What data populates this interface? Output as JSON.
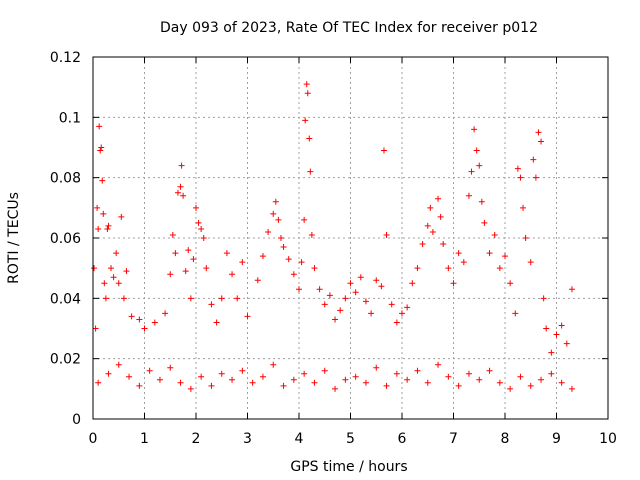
{
  "chart_data": {
    "type": "scatter",
    "title": "Day 093 of 2023, Rate Of TEC Index for receiver p012",
    "xlabel": "GPS time / hours",
    "ylabel": "ROTI / TECUs",
    "xlim": [
      0,
      10
    ],
    "ylim": [
      0,
      0.12
    ],
    "x_ticks": [
      "0",
      "1",
      "2",
      "3",
      "4",
      "5",
      "6",
      "7",
      "8",
      "9",
      "10"
    ],
    "y_ticks": [
      "0",
      "0.02",
      "0.04",
      "0.06",
      "0.08",
      "0.1",
      "0.12"
    ],
    "grid": true,
    "marker": "+",
    "color": "#ff0000",
    "series": [
      {
        "points": [
          [
            0.02,
            0.05
          ],
          [
            0.05,
            0.03
          ],
          [
            0.08,
            0.07
          ],
          [
            0.1,
            0.063
          ],
          [
            0.12,
            0.097
          ],
          [
            0.14,
            0.089
          ],
          [
            0.16,
            0.09
          ],
          [
            0.18,
            0.079
          ],
          [
            0.2,
            0.068
          ],
          [
            0.22,
            0.045
          ],
          [
            0.25,
            0.04
          ],
          [
            0.28,
            0.063
          ],
          [
            0.3,
            0.064
          ],
          [
            0.35,
            0.05
          ],
          [
            0.4,
            0.047
          ],
          [
            0.45,
            0.055
          ],
          [
            0.5,
            0.045
          ],
          [
            0.55,
            0.067
          ],
          [
            0.6,
            0.04
          ],
          [
            0.65,
            0.049
          ],
          [
            0.75,
            0.034
          ],
          [
            0.9,
            0.033
          ],
          [
            1.0,
            0.03
          ],
          [
            1.2,
            0.032
          ],
          [
            1.4,
            0.035
          ],
          [
            1.5,
            0.048
          ],
          [
            1.55,
            0.061
          ],
          [
            1.6,
            0.055
          ],
          [
            1.65,
            0.075
          ],
          [
            1.7,
            0.077
          ],
          [
            1.72,
            0.084
          ],
          [
            1.75,
            0.074
          ],
          [
            1.8,
            0.049
          ],
          [
            1.85,
            0.056
          ],
          [
            1.9,
            0.04
          ],
          [
            1.95,
            0.053
          ],
          [
            2.0,
            0.07
          ],
          [
            2.05,
            0.065
          ],
          [
            2.1,
            0.063
          ],
          [
            2.15,
            0.06
          ],
          [
            2.2,
            0.05
          ],
          [
            2.3,
            0.038
          ],
          [
            2.4,
            0.032
          ],
          [
            2.5,
            0.04
          ],
          [
            2.6,
            0.055
          ],
          [
            2.7,
            0.048
          ],
          [
            2.8,
            0.04
          ],
          [
            2.9,
            0.052
          ],
          [
            3.0,
            0.034
          ],
          [
            3.2,
            0.046
          ],
          [
            3.3,
            0.054
          ],
          [
            3.4,
            0.062
          ],
          [
            3.5,
            0.068
          ],
          [
            3.55,
            0.072
          ],
          [
            3.6,
            0.066
          ],
          [
            3.65,
            0.06
          ],
          [
            3.7,
            0.057
          ],
          [
            3.8,
            0.053
          ],
          [
            3.9,
            0.048
          ],
          [
            4.0,
            0.043
          ],
          [
            4.05,
            0.052
          ],
          [
            4.1,
            0.066
          ],
          [
            4.12,
            0.099
          ],
          [
            4.15,
            0.111
          ],
          [
            4.17,
            0.108
          ],
          [
            4.2,
            0.093
          ],
          [
            4.22,
            0.082
          ],
          [
            4.25,
            0.061
          ],
          [
            4.3,
            0.05
          ],
          [
            4.4,
            0.043
          ],
          [
            4.5,
            0.038
          ],
          [
            4.6,
            0.041
          ],
          [
            4.7,
            0.033
          ],
          [
            4.8,
            0.036
          ],
          [
            4.9,
            0.04
          ],
          [
            5.0,
            0.045
          ],
          [
            5.1,
            0.042
          ],
          [
            5.2,
            0.047
          ],
          [
            5.3,
            0.039
          ],
          [
            5.4,
            0.035
          ],
          [
            5.5,
            0.046
          ],
          [
            5.6,
            0.044
          ],
          [
            5.65,
            0.089
          ],
          [
            5.7,
            0.061
          ],
          [
            5.8,
            0.038
          ],
          [
            5.9,
            0.032
          ],
          [
            6.0,
            0.035
          ],
          [
            6.1,
            0.037
          ],
          [
            6.2,
            0.045
          ],
          [
            6.3,
            0.05
          ],
          [
            6.4,
            0.058
          ],
          [
            6.5,
            0.064
          ],
          [
            6.55,
            0.07
          ],
          [
            6.6,
            0.062
          ],
          [
            6.7,
            0.073
          ],
          [
            6.75,
            0.067
          ],
          [
            6.8,
            0.058
          ],
          [
            6.9,
            0.05
          ],
          [
            7.0,
            0.045
          ],
          [
            7.1,
            0.055
          ],
          [
            7.2,
            0.052
          ],
          [
            7.3,
            0.074
          ],
          [
            7.35,
            0.082
          ],
          [
            7.4,
            0.096
          ],
          [
            7.45,
            0.089
          ],
          [
            7.5,
            0.084
          ],
          [
            7.55,
            0.072
          ],
          [
            7.6,
            0.065
          ],
          [
            7.7,
            0.055
          ],
          [
            7.8,
            0.061
          ],
          [
            7.9,
            0.05
          ],
          [
            8.0,
            0.054
          ],
          [
            8.1,
            0.045
          ],
          [
            8.2,
            0.035
          ],
          [
            8.25,
            0.083
          ],
          [
            8.3,
            0.08
          ],
          [
            8.35,
            0.07
          ],
          [
            8.4,
            0.06
          ],
          [
            8.5,
            0.052
          ],
          [
            8.55,
            0.086
          ],
          [
            8.6,
            0.08
          ],
          [
            8.65,
            0.095
          ],
          [
            8.7,
            0.092
          ],
          [
            8.75,
            0.04
          ],
          [
            8.8,
            0.03
          ],
          [
            8.9,
            0.022
          ],
          [
            9.0,
            0.028
          ],
          [
            9.1,
            0.031
          ],
          [
            9.2,
            0.025
          ],
          [
            9.3,
            0.043
          ],
          [
            0.1,
            0.012
          ],
          [
            0.3,
            0.015
          ],
          [
            0.5,
            0.018
          ],
          [
            0.7,
            0.014
          ],
          [
            0.9,
            0.011
          ],
          [
            1.1,
            0.016
          ],
          [
            1.3,
            0.013
          ],
          [
            1.5,
            0.017
          ],
          [
            1.7,
            0.012
          ],
          [
            1.9,
            0.01
          ],
          [
            2.1,
            0.014
          ],
          [
            2.3,
            0.011
          ],
          [
            2.5,
            0.015
          ],
          [
            2.7,
            0.013
          ],
          [
            2.9,
            0.016
          ],
          [
            3.1,
            0.012
          ],
          [
            3.3,
            0.014
          ],
          [
            3.5,
            0.018
          ],
          [
            3.7,
            0.011
          ],
          [
            3.9,
            0.013
          ],
          [
            4.1,
            0.015
          ],
          [
            4.3,
            0.012
          ],
          [
            4.5,
            0.016
          ],
          [
            4.7,
            0.01
          ],
          [
            4.9,
            0.013
          ],
          [
            5.1,
            0.014
          ],
          [
            5.3,
            0.012
          ],
          [
            5.5,
            0.017
          ],
          [
            5.7,
            0.011
          ],
          [
            5.9,
            0.015
          ],
          [
            6.1,
            0.013
          ],
          [
            6.3,
            0.016
          ],
          [
            6.5,
            0.012
          ],
          [
            6.7,
            0.018
          ],
          [
            6.9,
            0.014
          ],
          [
            7.1,
            0.011
          ],
          [
            7.3,
            0.015
          ],
          [
            7.5,
            0.013
          ],
          [
            7.7,
            0.016
          ],
          [
            7.9,
            0.012
          ],
          [
            8.1,
            0.01
          ],
          [
            8.3,
            0.014
          ],
          [
            8.5,
            0.011
          ],
          [
            8.7,
            0.013
          ],
          [
            8.9,
            0.015
          ],
          [
            9.1,
            0.012
          ],
          [
            9.3,
            0.01
          ]
        ]
      }
    ]
  }
}
